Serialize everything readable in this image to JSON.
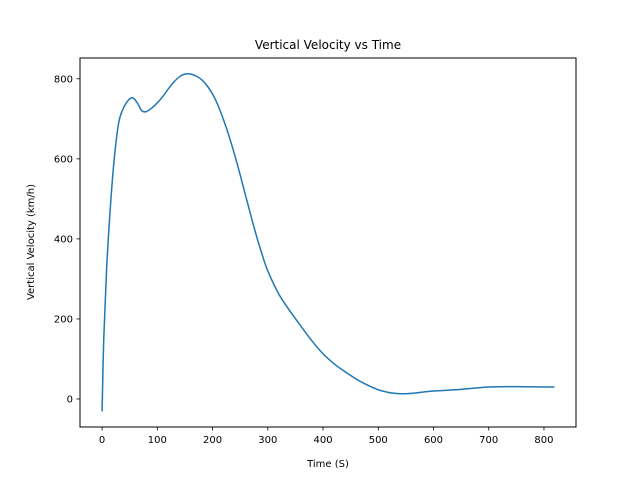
{
  "chart_data": {
    "type": "line",
    "title": "Vertical Velocity vs Time",
    "xlabel": "Time (S)",
    "ylabel": "Vertical Velocity (km/h)",
    "xlim": [
      -40,
      858
    ],
    "ylim": [
      -70,
      852
    ],
    "xticks": [
      0,
      100,
      200,
      300,
      400,
      500,
      600,
      700,
      800
    ],
    "yticks": [
      0,
      200,
      400,
      600,
      800
    ],
    "grid": false,
    "series": [
      {
        "color": "#1f77b4",
        "x": [
          0,
          3,
          8,
          15,
          22,
          30,
          38,
          45,
          52,
          58,
          65,
          72,
          80,
          90,
          100,
          110,
          120,
          130,
          140,
          150,
          160,
          170,
          180,
          190,
          200,
          210,
          220,
          230,
          240,
          250,
          260,
          270,
          280,
          290,
          300,
          320,
          340,
          360,
          380,
          400,
          420,
          440,
          460,
          480,
          500,
          520,
          540,
          560,
          580,
          600,
          650,
          700,
          750,
          800,
          818
        ],
        "values": [
          -30,
          150,
          320,
          480,
          600,
          690,
          725,
          742,
          752,
          750,
          737,
          720,
          718,
          727,
          740,
          756,
          775,
          792,
          805,
          812,
          812,
          807,
          798,
          783,
          762,
          733,
          697,
          656,
          610,
          560,
          507,
          455,
          405,
          360,
          320,
          262,
          220,
          182,
          145,
          113,
          88,
          68,
          50,
          35,
          23,
          16,
          13,
          14,
          17,
          20,
          24,
          30,
          31,
          30,
          30
        ]
      }
    ]
  }
}
